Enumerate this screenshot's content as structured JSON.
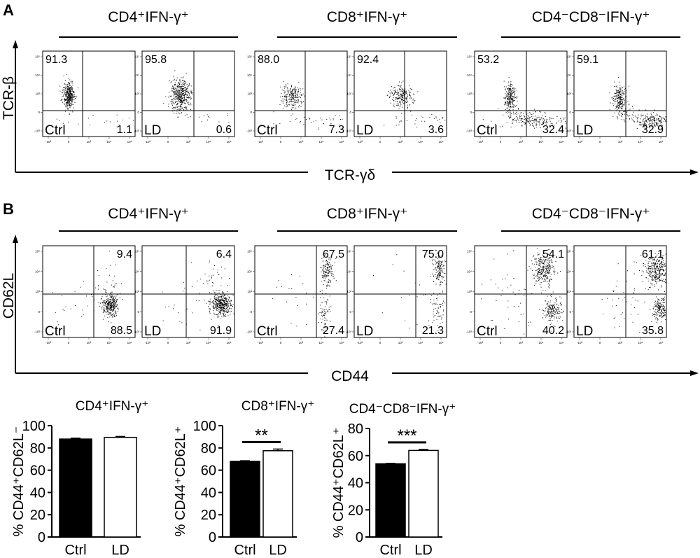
{
  "panels": [
    {
      "letter": "A",
      "groups": [
        {
          "label": "CD4⁺IFN-γ⁺"
        },
        {
          "label": "CD8⁺IFN-γ⁺"
        },
        {
          "label": "CD4⁻CD8⁻IFN-γ⁺"
        }
      ],
      "y_axis_label": "TCR-β",
      "x_axis_label": "TCR-γδ",
      "plots": [
        {
          "sample": "Ctrl",
          "q1": "91.3",
          "q2": "1.1"
        },
        {
          "sample": "LD",
          "q1": "95.8",
          "q2": "0.6"
        },
        {
          "sample": "Ctrl",
          "q1": "88.0",
          "q2": "7.3"
        },
        {
          "sample": "LD",
          "q1": "92.4",
          "q2": "3.6"
        },
        {
          "sample": "Ctrl",
          "q1": "53.2",
          "q2": "32.4"
        },
        {
          "sample": "LD",
          "q1": "59.1",
          "q2": "32.9"
        }
      ]
    },
    {
      "letter": "B",
      "groups": [
        {
          "label": "CD4⁺IFN-γ⁺"
        },
        {
          "label": "CD8⁺IFN-γ⁺"
        },
        {
          "label": "CD4⁻CD8⁻IFN-γ⁺"
        }
      ],
      "y_axis_label": "CD62L",
      "x_axis_label": "CD44",
      "plots": [
        {
          "sample": "Ctrl",
          "q1": "9.4",
          "q2": "88.5"
        },
        {
          "sample": "LD",
          "q1": "6.4",
          "q2": "91.9"
        },
        {
          "sample": "Ctrl",
          "q1": "67.5",
          "q2": "27.4"
        },
        {
          "sample": "LD",
          "q1": "75.0",
          "q2": "21.3"
        },
        {
          "sample": "Ctrl",
          "q1": "54.1",
          "q2": "40.2"
        },
        {
          "sample": "LD",
          "q1": "61.1",
          "q2": "35.8"
        }
      ]
    }
  ],
  "flow_ticks": {
    "x": [
      "-10³",
      "0",
      "10³",
      "10⁴",
      "10⁵"
    ],
    "y": [
      "10⁵",
      "10⁴",
      "10³",
      "0",
      "-10³"
    ]
  },
  "chart_data": [
    {
      "type": "bar",
      "title": "CD4⁺IFN-γ⁺",
      "ylabel": "% CD44⁺CD62L⁻",
      "categories": [
        "Ctrl",
        "LD"
      ],
      "values": [
        88,
        89.5
      ],
      "errors": [
        0.8,
        0.8
      ],
      "fills": [
        "#000000",
        "#ffffff"
      ],
      "ylim": [
        0,
        100
      ],
      "yticks": [
        0,
        20,
        40,
        60,
        80,
        100
      ],
      "significance": ""
    },
    {
      "type": "bar",
      "title": "CD8⁺IFN-γ⁺",
      "ylabel": "% CD44⁺CD62L⁺",
      "categories": [
        "Ctrl",
        "LD"
      ],
      "values": [
        68,
        77.5
      ],
      "errors": [
        0.5,
        1.5
      ],
      "fills": [
        "#000000",
        "#ffffff"
      ],
      "ylim": [
        0,
        100
      ],
      "yticks": [
        0,
        20,
        40,
        60,
        80,
        100
      ],
      "significance": "**"
    },
    {
      "type": "bar",
      "title": "CD4⁻CD8⁻IFN-γ⁺",
      "ylabel": "% CD44⁺CD62L⁺",
      "categories": [
        "Ctrl",
        "LD"
      ],
      "values": [
        54,
        63.8
      ],
      "errors": [
        0.3,
        0.8
      ],
      "fills": [
        "#000000",
        "#ffffff"
      ],
      "ylim": [
        0,
        80
      ],
      "yticks": [
        0,
        20,
        40,
        60,
        80
      ],
      "significance": "***"
    }
  ]
}
